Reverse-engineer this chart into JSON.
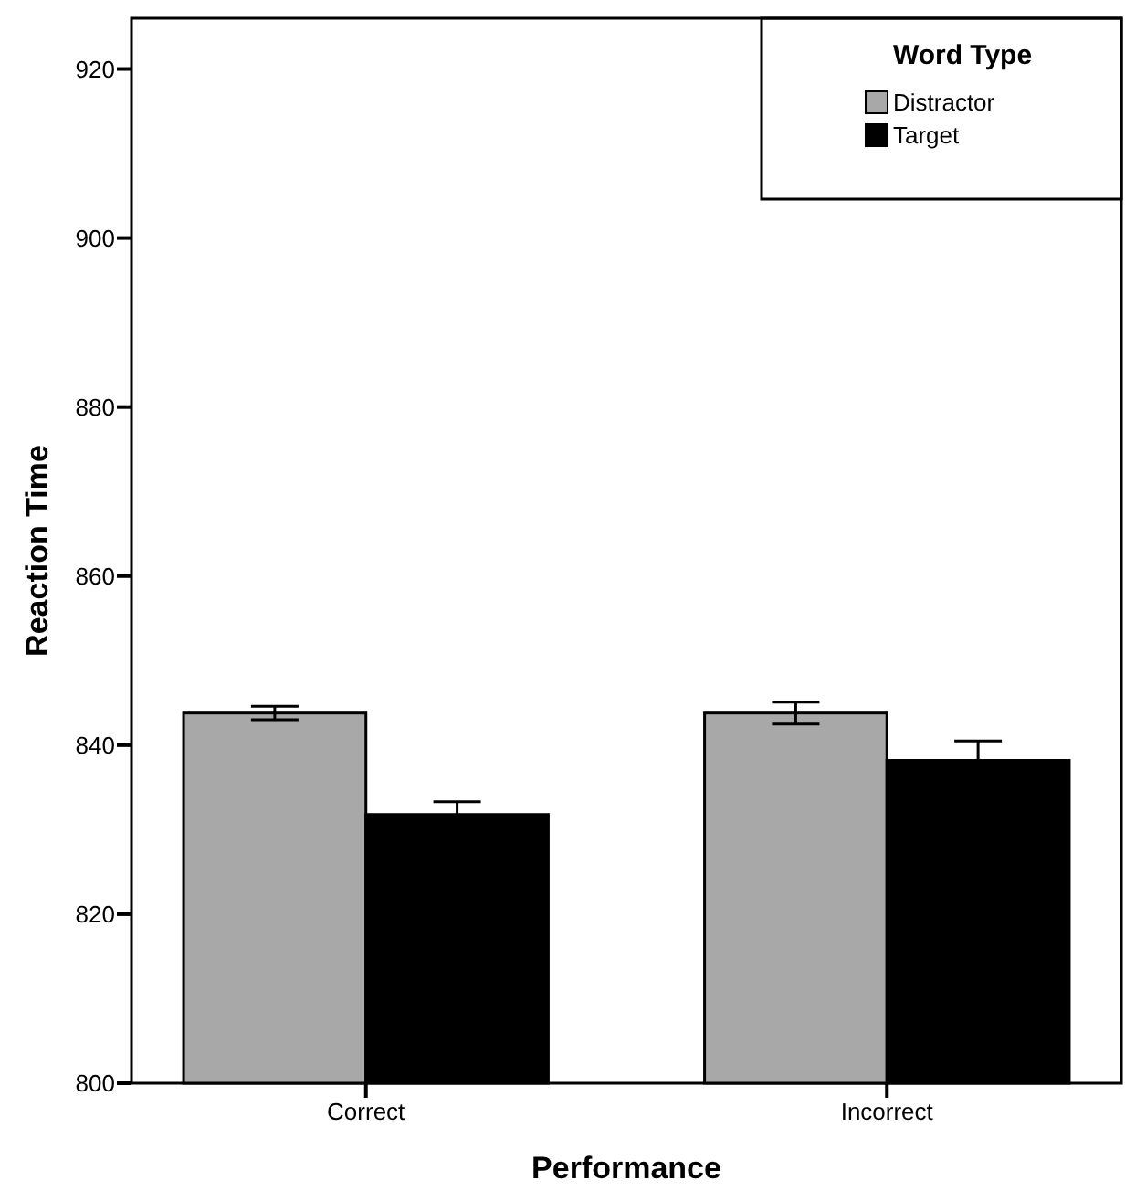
{
  "chart_data": {
    "type": "bar",
    "xlabel": "Performance",
    "ylabel": "Reaction Time",
    "legend_title": "Word Type",
    "categories": [
      "Correct",
      "Incorrect"
    ],
    "series": [
      {
        "name": "Distractor",
        "color": "#a8a8a8",
        "values": [
          843.8,
          843.8
        ],
        "errors": [
          0.8,
          1.3
        ]
      },
      {
        "name": "Target",
        "color": "#000000",
        "values": [
          831.8,
          838.2
        ],
        "errors": [
          1.5,
          2.3
        ]
      }
    ],
    "ylim": [
      800,
      926
    ],
    "yticks": [
      800,
      820,
      840,
      860,
      880,
      900,
      920
    ],
    "grid": false,
    "legend": "top right"
  }
}
